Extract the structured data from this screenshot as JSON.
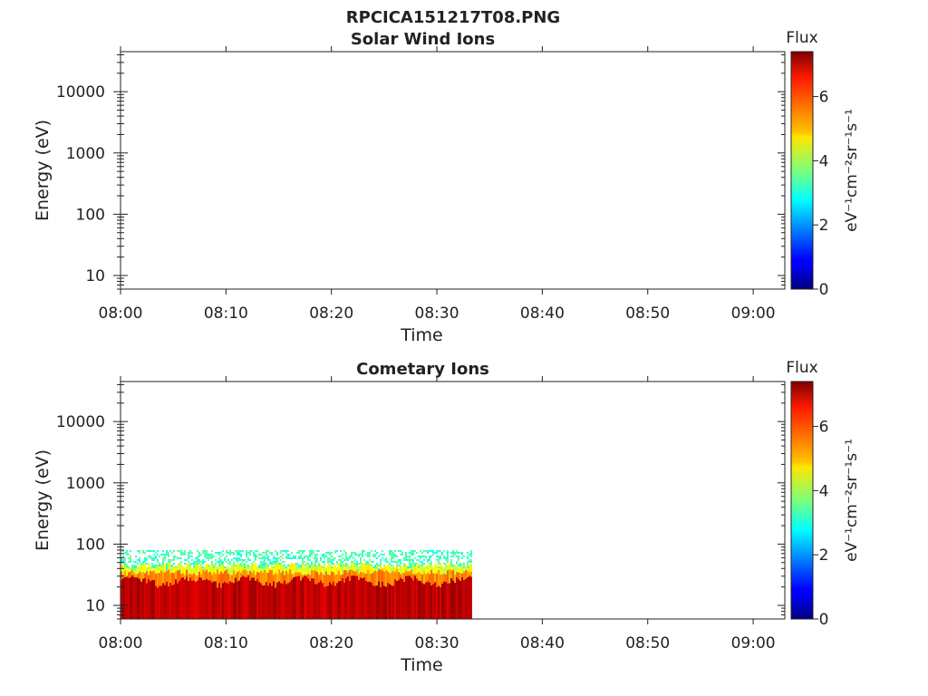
{
  "figure_title": "RPCICA151217T08.PNG",
  "chart_data": [
    {
      "type": "heatmap",
      "title": "Solar Wind Ions",
      "xlabel": "Time",
      "ylabel": "Energy (eV)",
      "x_ticks": [
        "08:00",
        "08:10",
        "08:20",
        "08:30",
        "08:40",
        "08:50",
        "09:00"
      ],
      "x_range_minutes": [
        0,
        63
      ],
      "y_scale": "log",
      "y_ticks": [
        "10",
        "100",
        "1000",
        "10000"
      ],
      "y_range": [
        6,
        45000
      ],
      "colorbar": {
        "title": "Flux",
        "units": "eV⁻¹cm⁻²sr⁻¹s⁻¹",
        "ticks": [
          "0",
          "2",
          "4",
          "6"
        ],
        "range": [
          0,
          7.4
        ],
        "colormap": "jet"
      },
      "data": []
    },
    {
      "type": "heatmap",
      "title": "Cometary Ions",
      "xlabel": "Time",
      "ylabel": "Energy (eV)",
      "x_ticks": [
        "08:00",
        "08:10",
        "08:20",
        "08:30",
        "08:40",
        "08:50",
        "09:00"
      ],
      "x_range_minutes": [
        0,
        63
      ],
      "y_scale": "log",
      "y_ticks": [
        "10",
        "100",
        "1000",
        "10000"
      ],
      "y_range": [
        6,
        45000
      ],
      "colorbar": {
        "title": "Flux",
        "units": "eV⁻¹cm⁻²sr⁻¹s⁻¹",
        "ticks": [
          "0",
          "2",
          "4",
          "6"
        ],
        "range": [
          0,
          7.4
        ],
        "colormap": "jet"
      },
      "data_extent_minutes": [
        0,
        33.2
      ],
      "data_energy_max_eV": 80,
      "bands": [
        {
          "energy_range_eV": [
            6,
            25
          ],
          "flux": 7.0
        },
        {
          "energy_range_eV": [
            25,
            35
          ],
          "flux": 5.5
        },
        {
          "energy_range_eV": [
            35,
            50
          ],
          "flux": 4.0
        },
        {
          "energy_range_eV": [
            50,
            80
          ],
          "flux": 2.8
        }
      ]
    }
  ]
}
